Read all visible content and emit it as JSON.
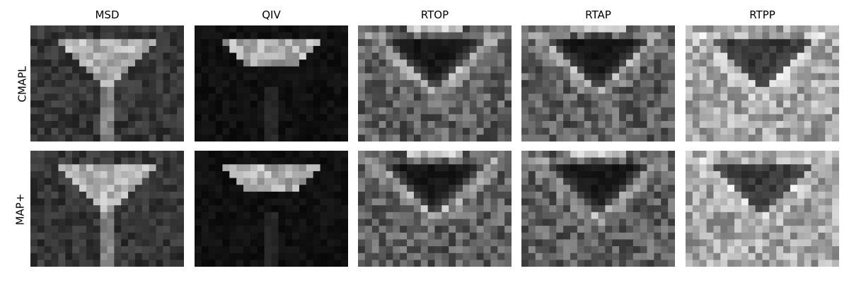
{
  "columns": [
    "MSD",
    "QIV",
    "RTOP",
    "RTAP",
    "RTPP"
  ],
  "rows": [
    "CMAPL",
    "MAP+"
  ],
  "panels": [
    {
      "row": "CMAPL",
      "column": "MSD",
      "colormap": "gray",
      "feature": "bright-V",
      "inv": false
    },
    {
      "row": "CMAPL",
      "column": "QIV",
      "colormap": "gray",
      "feature": "bright-V-top",
      "inv": false
    },
    {
      "row": "CMAPL",
      "column": "RTOP",
      "colormap": "gray",
      "feature": "dark-V",
      "inv": true
    },
    {
      "row": "CMAPL",
      "column": "RTAP",
      "colormap": "gray",
      "feature": "dark-V",
      "inv": true
    },
    {
      "row": "CMAPL",
      "column": "RTPP",
      "colormap": "gray",
      "feature": "dark-V-light-bg",
      "inv": true
    },
    {
      "row": "MAP+",
      "column": "MSD",
      "colormap": "gray",
      "feature": "bright-V",
      "inv": false
    },
    {
      "row": "MAP+",
      "column": "QIV",
      "colormap": "gray",
      "feature": "bright-V-top",
      "inv": false
    },
    {
      "row": "MAP+",
      "column": "RTOP",
      "colormap": "gray",
      "feature": "dark-V",
      "inv": true
    },
    {
      "row": "MAP+",
      "column": "RTAP",
      "colormap": "gray",
      "feature": "dark-V",
      "inv": true
    },
    {
      "row": "MAP+",
      "column": "RTPP",
      "colormap": "gray",
      "feature": "dark-V-light-bg",
      "inv": true
    }
  ]
}
